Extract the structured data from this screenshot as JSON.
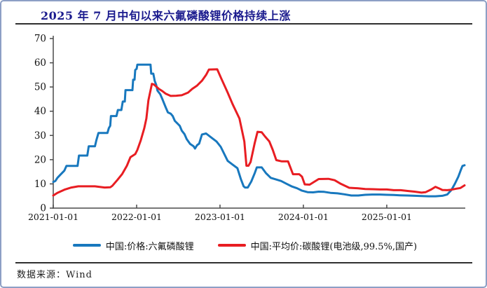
{
  "footer": {
    "source": "数据来源：Wind"
  },
  "colors": {
    "title_navy": "#1b1b8e",
    "frame_border": "#8d9fc5",
    "axis": "#4a4a4a",
    "divider": "#2f2f2f",
    "series_blue": "#1878be",
    "series_red": "#e81d22"
  },
  "chart_data": {
    "type": "line",
    "title": "2025 年 7 月中旬以来六氟磷酸锂价格持续上涨",
    "xlabel": "",
    "ylabel": "",
    "grid": false,
    "legend_position": "bottom",
    "x_axis": {
      "unit": "months_since_2021-01-01",
      "range": [
        0,
        59.2
      ],
      "tick_positions": [
        0,
        12,
        24,
        36,
        48
      ],
      "tick_labels": [
        "2021-01-01",
        "2022-01-01",
        "2023-01-01",
        "2024-01-01",
        "2025-01-01"
      ]
    },
    "y_axis": {
      "range": [
        0,
        70
      ],
      "ticks": [
        0,
        10,
        20,
        30,
        40,
        50,
        60,
        70
      ]
    },
    "series": [
      {
        "name": "中国:价格:六氟磷酸锂",
        "color": "#1878be",
        "points": [
          [
            0,
            10.8
          ],
          [
            0.3,
            11.2
          ],
          [
            0.6,
            12.5
          ],
          [
            1.1,
            14
          ],
          [
            1.6,
            15.5
          ],
          [
            1.9,
            17.4
          ],
          [
            3.5,
            17.4
          ],
          [
            3.7,
            21.7
          ],
          [
            4.9,
            21.7
          ],
          [
            5.1,
            25.5
          ],
          [
            6,
            25.5
          ],
          [
            6.2,
            28
          ],
          [
            6.5,
            31
          ],
          [
            7.8,
            31
          ],
          [
            8,
            33
          ],
          [
            8.2,
            34
          ],
          [
            8.3,
            38
          ],
          [
            9.1,
            38
          ],
          [
            9.3,
            40.5
          ],
          [
            9.8,
            40.5
          ],
          [
            10,
            44
          ],
          [
            10.3,
            44
          ],
          [
            10.4,
            48.7
          ],
          [
            11.4,
            48.7
          ],
          [
            11.5,
            53
          ],
          [
            11.7,
            53
          ],
          [
            11.8,
            57
          ],
          [
            12,
            57.5
          ],
          [
            12.1,
            59.2
          ],
          [
            14,
            59.2
          ],
          [
            14.1,
            55.5
          ],
          [
            14.4,
            55.5
          ],
          [
            14.6,
            52.5
          ],
          [
            14.8,
            51
          ],
          [
            15,
            48.5
          ],
          [
            15.4,
            47
          ],
          [
            15.7,
            45
          ],
          [
            16.2,
            41.5
          ],
          [
            16.5,
            39.5
          ],
          [
            16.9,
            39
          ],
          [
            17.2,
            38
          ],
          [
            17.5,
            36
          ],
          [
            18.2,
            34
          ],
          [
            18.5,
            32
          ],
          [
            18.9,
            30.5
          ],
          [
            19.2,
            28.5
          ],
          [
            19.7,
            26.5
          ],
          [
            20.2,
            25.5
          ],
          [
            20.4,
            24.6
          ],
          [
            20.7,
            26
          ],
          [
            21,
            26.6
          ],
          [
            21.4,
            30.4
          ],
          [
            22,
            30.8
          ],
          [
            22.8,
            29
          ],
          [
            23.5,
            27.5
          ],
          [
            24.1,
            25.3
          ],
          [
            25.1,
            19.5
          ],
          [
            25.8,
            18
          ],
          [
            26.5,
            16.5
          ],
          [
            27,
            12
          ],
          [
            27.4,
            9
          ],
          [
            27.6,
            8.5
          ],
          [
            28,
            8.5
          ],
          [
            28.5,
            11
          ],
          [
            29,
            14.5
          ],
          [
            29.3,
            16.8
          ],
          [
            30,
            16.8
          ],
          [
            30.6,
            14.5
          ],
          [
            31.3,
            12.5
          ],
          [
            32.1,
            11.8
          ],
          [
            32.8,
            11.2
          ],
          [
            33.6,
            10
          ],
          [
            34.3,
            9
          ],
          [
            35.1,
            8.2
          ],
          [
            35.8,
            7.2
          ],
          [
            36.6,
            6.6
          ],
          [
            37.4,
            6.5
          ],
          [
            38.2,
            6.8
          ],
          [
            39,
            6.7
          ],
          [
            39.9,
            6.3
          ],
          [
            40.9,
            6.1
          ],
          [
            41.9,
            5.7
          ],
          [
            42.9,
            5.2
          ],
          [
            43.9,
            5.2
          ],
          [
            44.9,
            5.5
          ],
          [
            45.9,
            5.6
          ],
          [
            47,
            5.6
          ],
          [
            48,
            5.5
          ],
          [
            49,
            5.4
          ],
          [
            49.9,
            5.3
          ],
          [
            51,
            5.2
          ],
          [
            52,
            5.1
          ],
          [
            53,
            5
          ],
          [
            54,
            4.9
          ],
          [
            55,
            4.9
          ],
          [
            56,
            5.1
          ],
          [
            56.7,
            5.6
          ],
          [
            57.3,
            7.5
          ],
          [
            57.8,
            10
          ],
          [
            58.3,
            13
          ],
          [
            58.7,
            16
          ],
          [
            58.9,
            17.4
          ],
          [
            59.2,
            17.7
          ]
        ]
      },
      {
        "name": "中国:平均价:碳酸锂(电池级,99.5%,国产)",
        "color": "#e81d22",
        "points": [
          [
            0,
            5.2
          ],
          [
            0.6,
            6.3
          ],
          [
            1.6,
            7.6
          ],
          [
            2.6,
            8.5
          ],
          [
            3.6,
            9
          ],
          [
            5,
            9
          ],
          [
            6,
            9
          ],
          [
            6.6,
            8.8
          ],
          [
            7.4,
            8.5
          ],
          [
            8.2,
            8.6
          ],
          [
            8.5,
            9.2
          ],
          [
            9.2,
            11.5
          ],
          [
            9.9,
            14
          ],
          [
            10.6,
            17.5
          ],
          [
            11.1,
            21
          ],
          [
            11.8,
            22.3
          ],
          [
            12.1,
            24
          ],
          [
            12.6,
            28
          ],
          [
            13.1,
            33
          ],
          [
            13.4,
            37
          ],
          [
            13.7,
            44.5
          ],
          [
            14.2,
            51.3
          ],
          [
            14.5,
            51
          ],
          [
            14.9,
            50
          ],
          [
            15.2,
            49.2
          ],
          [
            15.7,
            48.3
          ],
          [
            16.2,
            47.2
          ],
          [
            16.9,
            46.3
          ],
          [
            17.7,
            46.4
          ],
          [
            18.5,
            46.6
          ],
          [
            19.4,
            47.7
          ],
          [
            20,
            49.2
          ],
          [
            20.7,
            50.6
          ],
          [
            21.4,
            52.6
          ],
          [
            22,
            55
          ],
          [
            22.4,
            57.2
          ],
          [
            23.6,
            57.3
          ],
          [
            24.1,
            54
          ],
          [
            25.1,
            47.7
          ],
          [
            25.8,
            43
          ],
          [
            26.8,
            37
          ],
          [
            27.5,
            27.5
          ],
          [
            27.8,
            17.5
          ],
          [
            28.1,
            17.5
          ],
          [
            28.4,
            19
          ],
          [
            29,
            27
          ],
          [
            29.4,
            31.5
          ],
          [
            30,
            31.3
          ],
          [
            30.5,
            29.5
          ],
          [
            31.1,
            27.5
          ],
          [
            31.6,
            24
          ],
          [
            32.1,
            19.8
          ],
          [
            32.9,
            19.3
          ],
          [
            33.8,
            19.3
          ],
          [
            34.5,
            14
          ],
          [
            35.4,
            14
          ],
          [
            35.8,
            13
          ],
          [
            36.2,
            9.8
          ],
          [
            36.9,
            9.7
          ],
          [
            38.2,
            12
          ],
          [
            39.6,
            12.1
          ],
          [
            40.5,
            11.5
          ],
          [
            41.4,
            10
          ],
          [
            42.6,
            8.4
          ],
          [
            43.9,
            8.2
          ],
          [
            44.9,
            7.9
          ],
          [
            46,
            7.8
          ],
          [
            47,
            7.7
          ],
          [
            48,
            7.7
          ],
          [
            49,
            7.4
          ],
          [
            50,
            7.4
          ],
          [
            51,
            7.1
          ],
          [
            52,
            6.8
          ],
          [
            53,
            6.4
          ],
          [
            53.6,
            6.6
          ],
          [
            54.4,
            7.7
          ],
          [
            55,
            8.8
          ],
          [
            55.5,
            8.2
          ],
          [
            56,
            7.5
          ],
          [
            56.7,
            7.4
          ],
          [
            57.3,
            7.6
          ],
          [
            58,
            8
          ],
          [
            58.6,
            8.3
          ],
          [
            59.2,
            9.4
          ]
        ]
      }
    ]
  }
}
